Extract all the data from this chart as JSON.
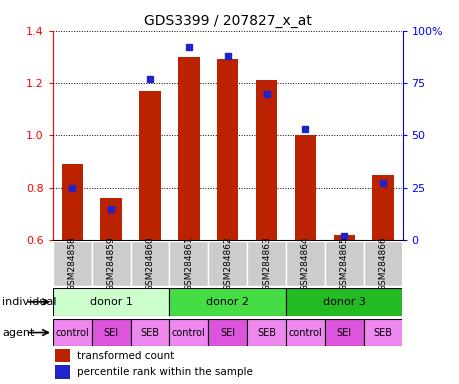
{
  "title": "GDS3399 / 207827_x_at",
  "samples": [
    "GSM284858",
    "GSM284859",
    "GSM284860",
    "GSM284861",
    "GSM284862",
    "GSM284863",
    "GSM284864",
    "GSM284865",
    "GSM284866"
  ],
  "transformed_count": [
    0.89,
    0.76,
    1.17,
    1.3,
    1.29,
    1.21,
    1.0,
    0.62,
    0.85
  ],
  "percentile_rank": [
    25,
    15,
    77,
    92,
    88,
    70,
    53,
    2,
    27
  ],
  "ylim_left": [
    0.6,
    1.4
  ],
  "ylim_right": [
    0,
    100
  ],
  "yticks_left": [
    0.6,
    0.8,
    1.0,
    1.2,
    1.4
  ],
  "yticks_right": [
    0,
    25,
    50,
    75,
    100
  ],
  "yticklabels_right": [
    "0",
    "25",
    "50",
    "75",
    "100%"
  ],
  "bar_color": "#bb2200",
  "dot_color": "#2222cc",
  "individuals": [
    {
      "label": "donor 1",
      "start": 0,
      "end": 3,
      "color": "#ccffcc"
    },
    {
      "label": "donor 2",
      "start": 3,
      "end": 6,
      "color": "#44dd44"
    },
    {
      "label": "donor 3",
      "start": 6,
      "end": 9,
      "color": "#22bb22"
    }
  ],
  "agents": [
    "control",
    "SEI",
    "SEB",
    "control",
    "SEI",
    "SEB",
    "control",
    "SEI",
    "SEB"
  ],
  "agent_color_control": "#ee88ee",
  "agent_color_SEI": "#dd55dd",
  "agent_color_SEB": "#ee88ee",
  "xlabel_individual": "individual",
  "xlabel_agent": "agent",
  "legend_bar": "transformed count",
  "legend_dot": "percentile rank within the sample",
  "sample_box_color": "#cccccc",
  "bar_bottom": 0.6
}
